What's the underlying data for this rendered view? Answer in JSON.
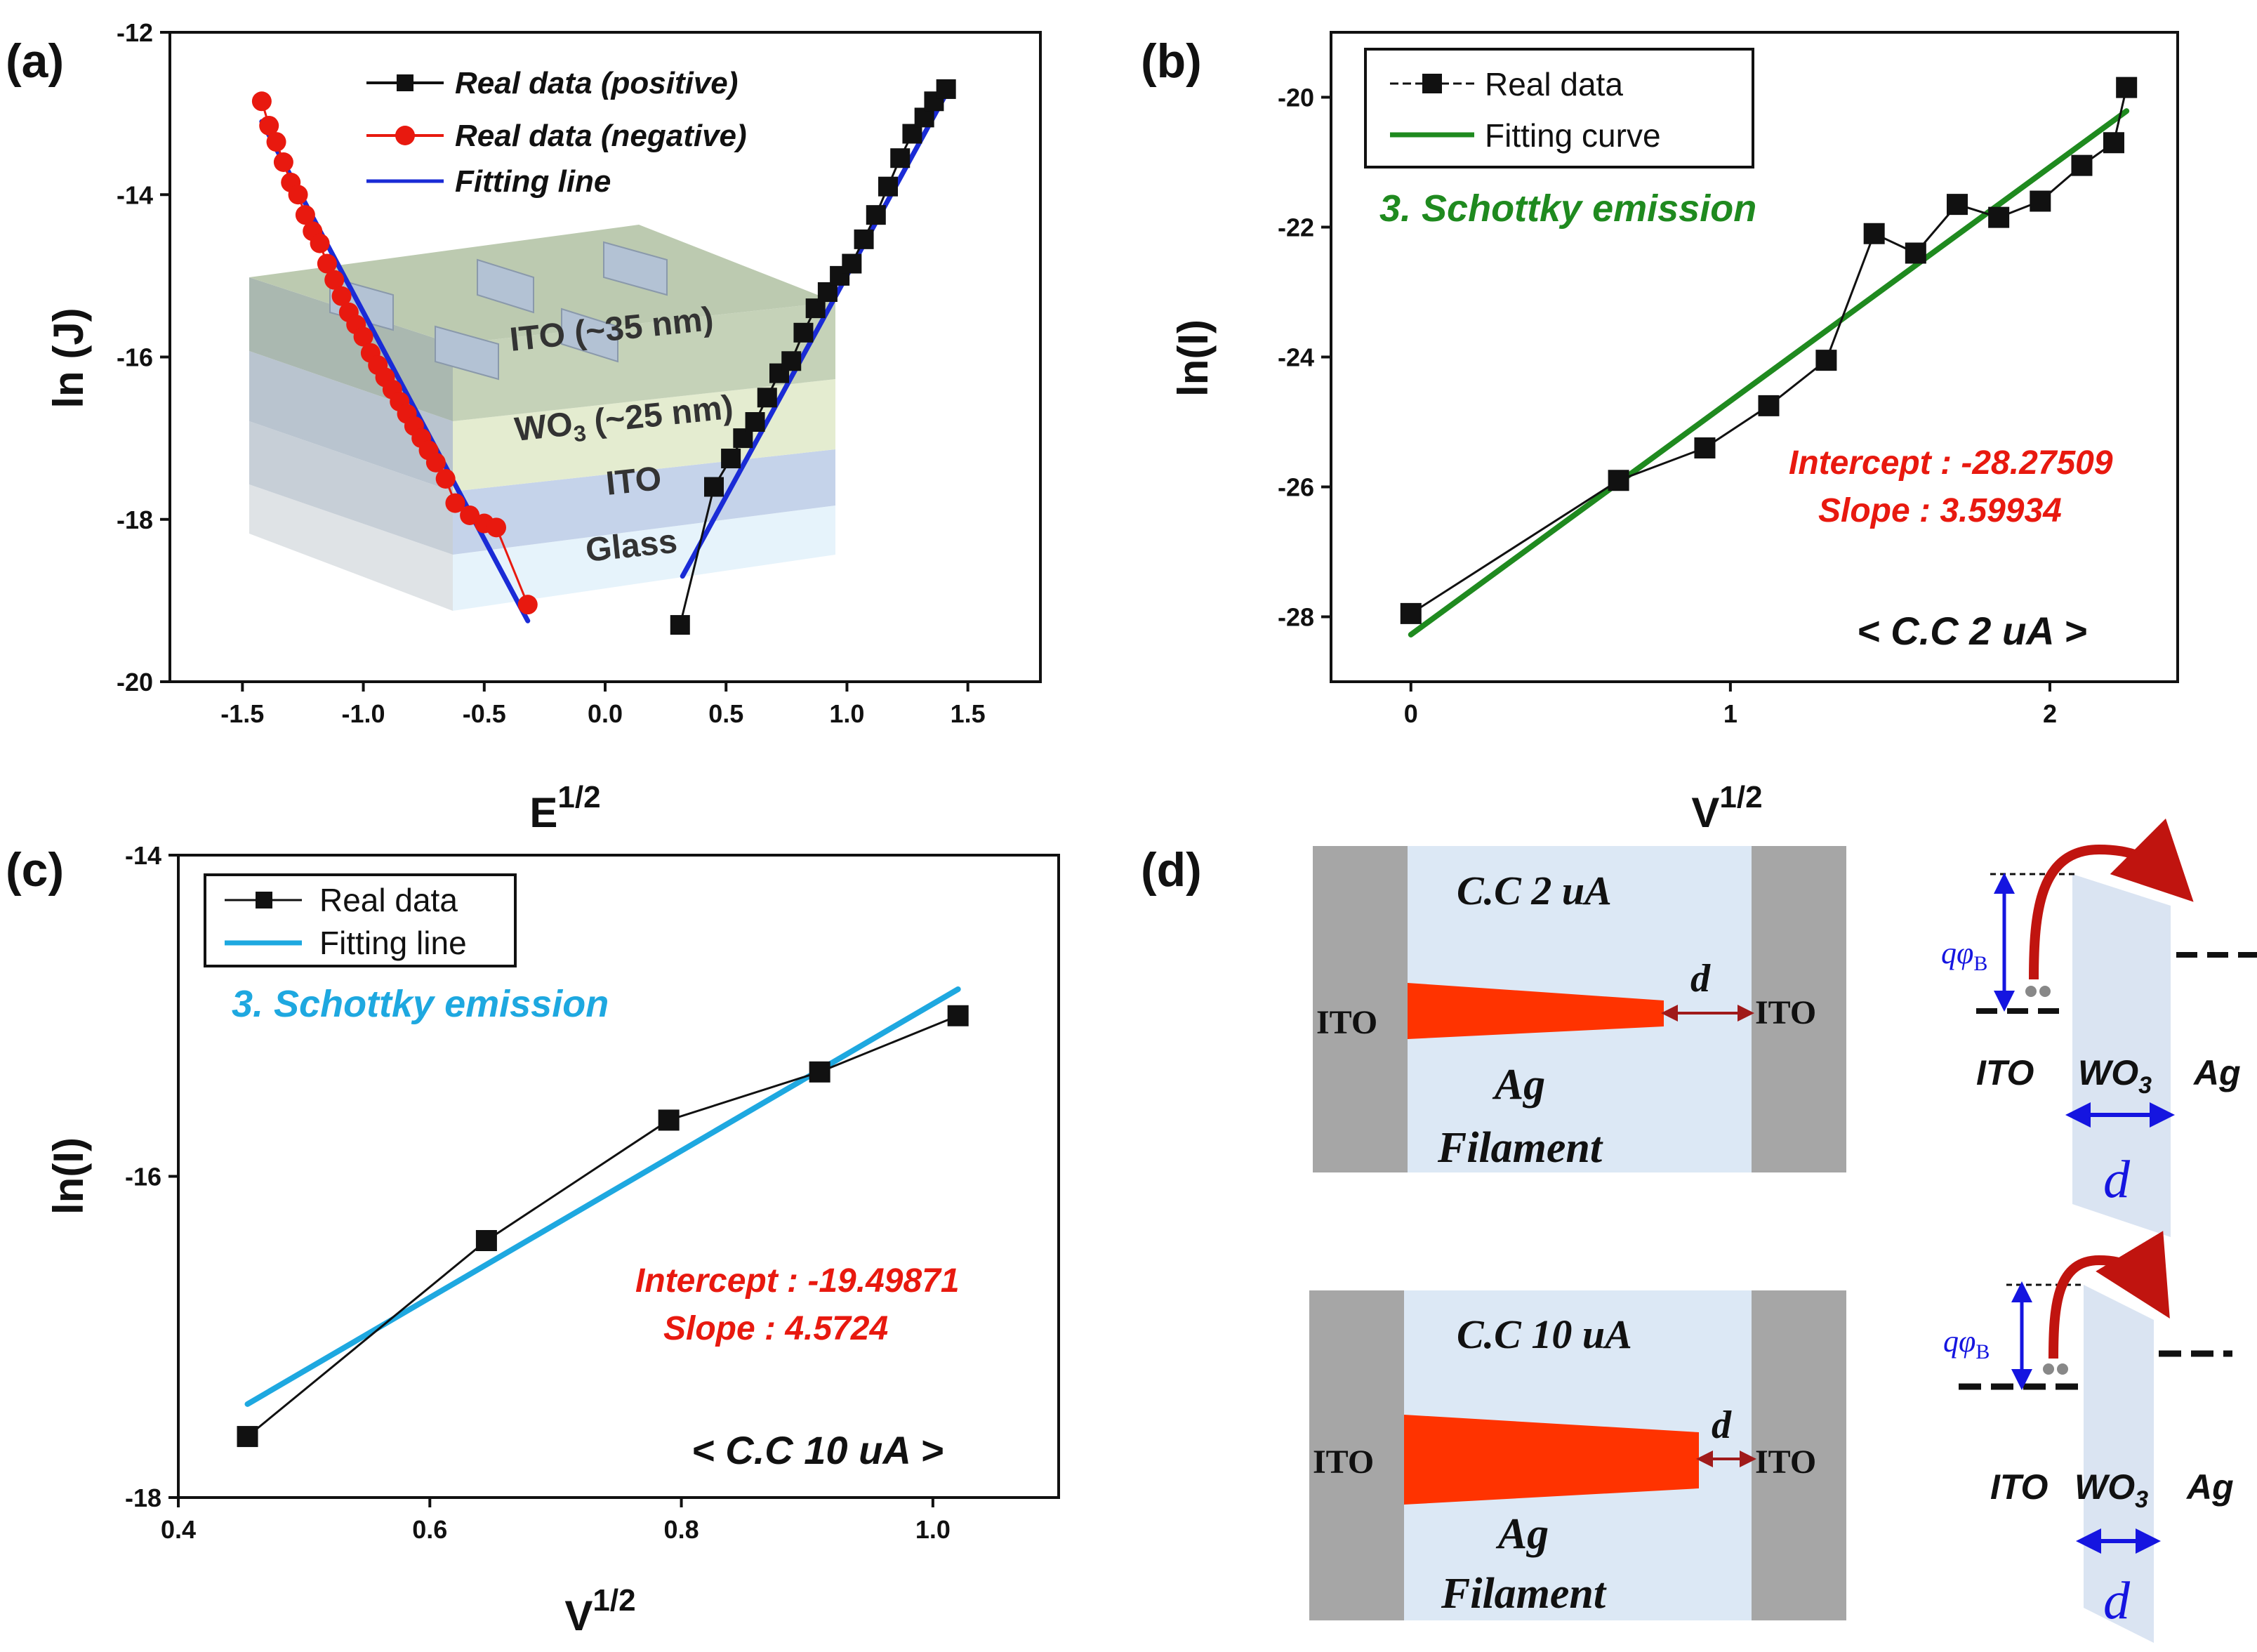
{
  "chart_data": [
    {
      "id": "a",
      "panel_label": "(a)",
      "type": "scatter",
      "xlabel": "E",
      "xlabel_sup": "1/2",
      "ylabel": "ln (J)",
      "xlim": [
        -1.8,
        1.8
      ],
      "ylim": [
        -20,
        -12
      ],
      "xticks": [
        -1.5,
        -1.0,
        -0.5,
        0.0,
        0.5,
        1.0,
        1.5
      ],
      "xtick_labels": [
        "-1.5",
        "-1.0",
        "-0.5",
        "0.0",
        "0.5",
        "1.0",
        "1.5"
      ],
      "yticks": [
        -20,
        -18,
        -16,
        -14,
        -12
      ],
      "ytick_labels": [
        "-20",
        "-18",
        "-16",
        "-14",
        "-12"
      ],
      "legend_position": "top-center",
      "series": [
        {
          "name": "Real data (positive)",
          "kind": "points",
          "marker": "square",
          "color": "#111111",
          "x": [
            0.31,
            0.45,
            0.52,
            0.57,
            0.62,
            0.67,
            0.72,
            0.77,
            0.82,
            0.87,
            0.92,
            0.97,
            1.02,
            1.07,
            1.12,
            1.17,
            1.22,
            1.27,
            1.32,
            1.36,
            1.41
          ],
          "y": [
            -19.3,
            -17.6,
            -17.25,
            -17.0,
            -16.8,
            -16.5,
            -16.2,
            -16.05,
            -15.7,
            -15.4,
            -15.2,
            -15.0,
            -14.85,
            -14.55,
            -14.25,
            -13.9,
            -13.55,
            -13.25,
            -13.05,
            -12.85,
            -12.7
          ]
        },
        {
          "name": "Real data  (negative)",
          "kind": "points",
          "marker": "circle",
          "color": "#e8190f",
          "x": [
            -1.42,
            -1.39,
            -1.36,
            -1.33,
            -1.3,
            -1.27,
            -1.24,
            -1.21,
            -1.18,
            -1.15,
            -1.12,
            -1.09,
            -1.06,
            -1.03,
            -1.0,
            -0.97,
            -0.94,
            -0.91,
            -0.88,
            -0.85,
            -0.82,
            -0.79,
            -0.76,
            -0.73,
            -0.7,
            -0.66,
            -0.62,
            -0.56,
            -0.5,
            -0.45,
            -0.32
          ],
          "y": [
            -12.85,
            -13.15,
            -13.35,
            -13.6,
            -13.85,
            -14.0,
            -14.25,
            -14.45,
            -14.6,
            -14.85,
            -15.05,
            -15.25,
            -15.45,
            -15.6,
            -15.75,
            -15.95,
            -16.1,
            -16.25,
            -16.4,
            -16.55,
            -16.7,
            -16.85,
            -17.0,
            -17.15,
            -17.3,
            -17.5,
            -17.8,
            -17.95,
            -18.05,
            -18.1,
            -19.05
          ]
        },
        {
          "name": "Fitting line",
          "kind": "lines",
          "color": "#1a2bd6",
          "segments": [
            {
              "x": [
                -1.42,
                -0.32
              ],
              "y": [
                -13.1,
                -19.25
              ]
            },
            {
              "x": [
                0.32,
                1.43
              ],
              "y": [
                -18.7,
                -12.65
              ]
            }
          ]
        }
      ],
      "inset": {
        "layers": [
          "ITO (~35 nm)",
          "WO",
          "3",
          " (~25 nm)",
          "ITO",
          "Glass"
        ]
      }
    },
    {
      "id": "b",
      "panel_label": "(b)",
      "type": "scatter",
      "xlabel": "V",
      "xlabel_sup": "1/2",
      "ylabel": "ln(I)",
      "xlim": [
        -0.25,
        2.4
      ],
      "ylim": [
        -29,
        -19
      ],
      "xticks": [
        0,
        1,
        2
      ],
      "xtick_labels": [
        "0",
        "1",
        "2"
      ],
      "yticks": [
        -28,
        -26,
        -24,
        -22,
        -20
      ],
      "ytick_labels": [
        "-28",
        "-26",
        "-24",
        "-22",
        "-20"
      ],
      "legend_position": "top-left",
      "series": [
        {
          "name": "Real data",
          "kind": "points",
          "marker": "square",
          "color": "#111111",
          "x": [
            0,
            0.65,
            0.92,
            1.12,
            1.3,
            1.45,
            1.58,
            1.71,
            1.84,
            1.97,
            2.1,
            2.2,
            2.24
          ],
          "y": [
            -27.95,
            -25.9,
            -25.4,
            -24.75,
            -24.05,
            -22.1,
            -22.4,
            -21.65,
            -21.85,
            -21.6,
            -21.05,
            -20.7,
            -19.85
          ]
        },
        {
          "name": "Fitting curve",
          "kind": "lines",
          "color": "#1f8a1f",
          "segments": [
            {
              "x": [
                0,
                2.24
              ],
              "y": [
                -28.27509,
                -20.21277
              ]
            }
          ]
        }
      ],
      "annotations": {
        "mechanism": "3. Schottky emission",
        "intercept": "Intercept : -28.27509",
        "slope": "Slope     :     3.59934",
        "compliance": "< C.C 2 uA >"
      }
    },
    {
      "id": "c",
      "panel_label": "(c)",
      "type": "scatter",
      "xlabel": "V",
      "xlabel_sup": "1/2",
      "ylabel": "ln(I)",
      "xlim": [
        0.4,
        1.1
      ],
      "ylim": [
        -18,
        -14
      ],
      "xticks": [
        0.4,
        0.6,
        0.8,
        1.0
      ],
      "xtick_labels": [
        "0.4",
        "0.6",
        "0.8",
        "1.0"
      ],
      "yticks": [
        -18,
        -16,
        -14
      ],
      "ytick_labels": [
        "-18",
        "-16",
        "-14"
      ],
      "legend_position": "top-left",
      "series": [
        {
          "name": "Real data",
          "kind": "points",
          "marker": "square",
          "color": "#111111",
          "x": [
            0.455,
            0.645,
            0.79,
            0.91,
            1.02
          ],
          "y": [
            -17.62,
            -16.4,
            -15.65,
            -15.35,
            -15.0
          ]
        },
        {
          "name": "Fitting line",
          "kind": "lines",
          "color": "#1ea8e0",
          "segments": [
            {
              "x": [
                0.455,
                1.02
              ],
              "y": [
                -17.4182,
                -14.8349
              ]
            }
          ]
        }
      ],
      "annotations": {
        "mechanism": "3. Schottky emission",
        "intercept": "Intercept : -19.49871",
        "slope": "Slope     :     4.5724",
        "compliance": "< C.C 10 uA >"
      }
    }
  ],
  "diagram_d": {
    "panel_label": "(d)",
    "top": {
      "compliance": "C.C 2 uA",
      "electrode_left": "ITO",
      "electrode_right": "ITO",
      "gap": "d",
      "filament_line1": "Ag",
      "filament_line2": "Filament"
    },
    "bottom": {
      "compliance": "C.C 10 uA",
      "electrode_left": "ITO",
      "electrode_right": "ITO",
      "gap": "d",
      "filament_line1": "Ag",
      "filament_line2": "Filament"
    },
    "band_top": {
      "barrier_q": "qφ",
      "barrier_sub": "B",
      "left": "ITO",
      "mid": "WO",
      "mid_sub": "3",
      "right": "Ag",
      "width": "d"
    },
    "band_bottom": {
      "barrier_q": "qφ",
      "barrier_sub": "B",
      "left": "ITO",
      "mid": "WO",
      "mid_sub": "3",
      "right": "Ag",
      "width": "d"
    }
  },
  "colors": {
    "positive": "#111111",
    "negative": "#e8190f",
    "fit_a": "#1a2bd6",
    "fit_b": "#1f8a1f",
    "fit_c": "#1ea8e0",
    "annot_red": "#e8190f",
    "filament": "#ff3300",
    "electrode": "#a6a6a6",
    "medium": "#dce8f5",
    "arrow_red": "#c0140f",
    "arrow_blue": "#1515e0"
  }
}
